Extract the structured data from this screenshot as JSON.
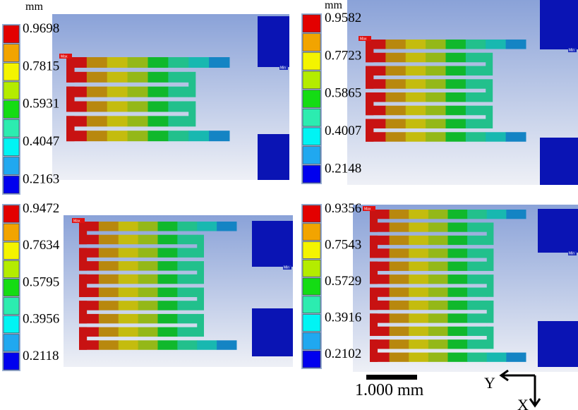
{
  "figure": {
    "panels": [
      {
        "unit": "mm",
        "legend_values": [
          "0.9698",
          "0.7815",
          "0.5931",
          "0.4047",
          "0.2163"
        ],
        "max_tag": "Max",
        "min_tag": "Min",
        "arms": 3
      },
      {
        "unit": "mm",
        "legend_values": [
          "0.9582",
          "0.7723",
          "0.5865",
          "0.4007",
          "0.2148"
        ],
        "max_tag": "Max",
        "min_tag": "Min",
        "arms": 4
      },
      {
        "unit": "",
        "legend_values": [
          "0.9472",
          "0.7634",
          "0.5795",
          "0.3956",
          "0.2118"
        ],
        "max_tag": "Max",
        "min_tag": "Min",
        "arms": 5
      },
      {
        "unit": "",
        "legend_values": [
          "0.9356",
          "0.7543",
          "0.5729",
          "0.3916",
          "0.2102"
        ],
        "max_tag": "Max",
        "min_tag": "Min",
        "arms": 6
      }
    ],
    "colorbar_colors": [
      "#e30000",
      "#f2a400",
      "#f4f400",
      "#b4ec00",
      "#14dc14",
      "#2cecb0",
      "#00f4f4",
      "#20a8f0",
      "#0000ee"
    ],
    "beam_colors": [
      "#c81212",
      "#b8880e",
      "#c4bc0e",
      "#94b818",
      "#10b82c",
      "#22c08c",
      "#18b8b0",
      "#1484c4"
    ],
    "anchor_color": "#0a14b4",
    "background_color": "#b8c8e4",
    "scale_bar": {
      "label": "1.000 mm"
    },
    "axes": {
      "y_label": "Y",
      "x_label": "X"
    }
  }
}
